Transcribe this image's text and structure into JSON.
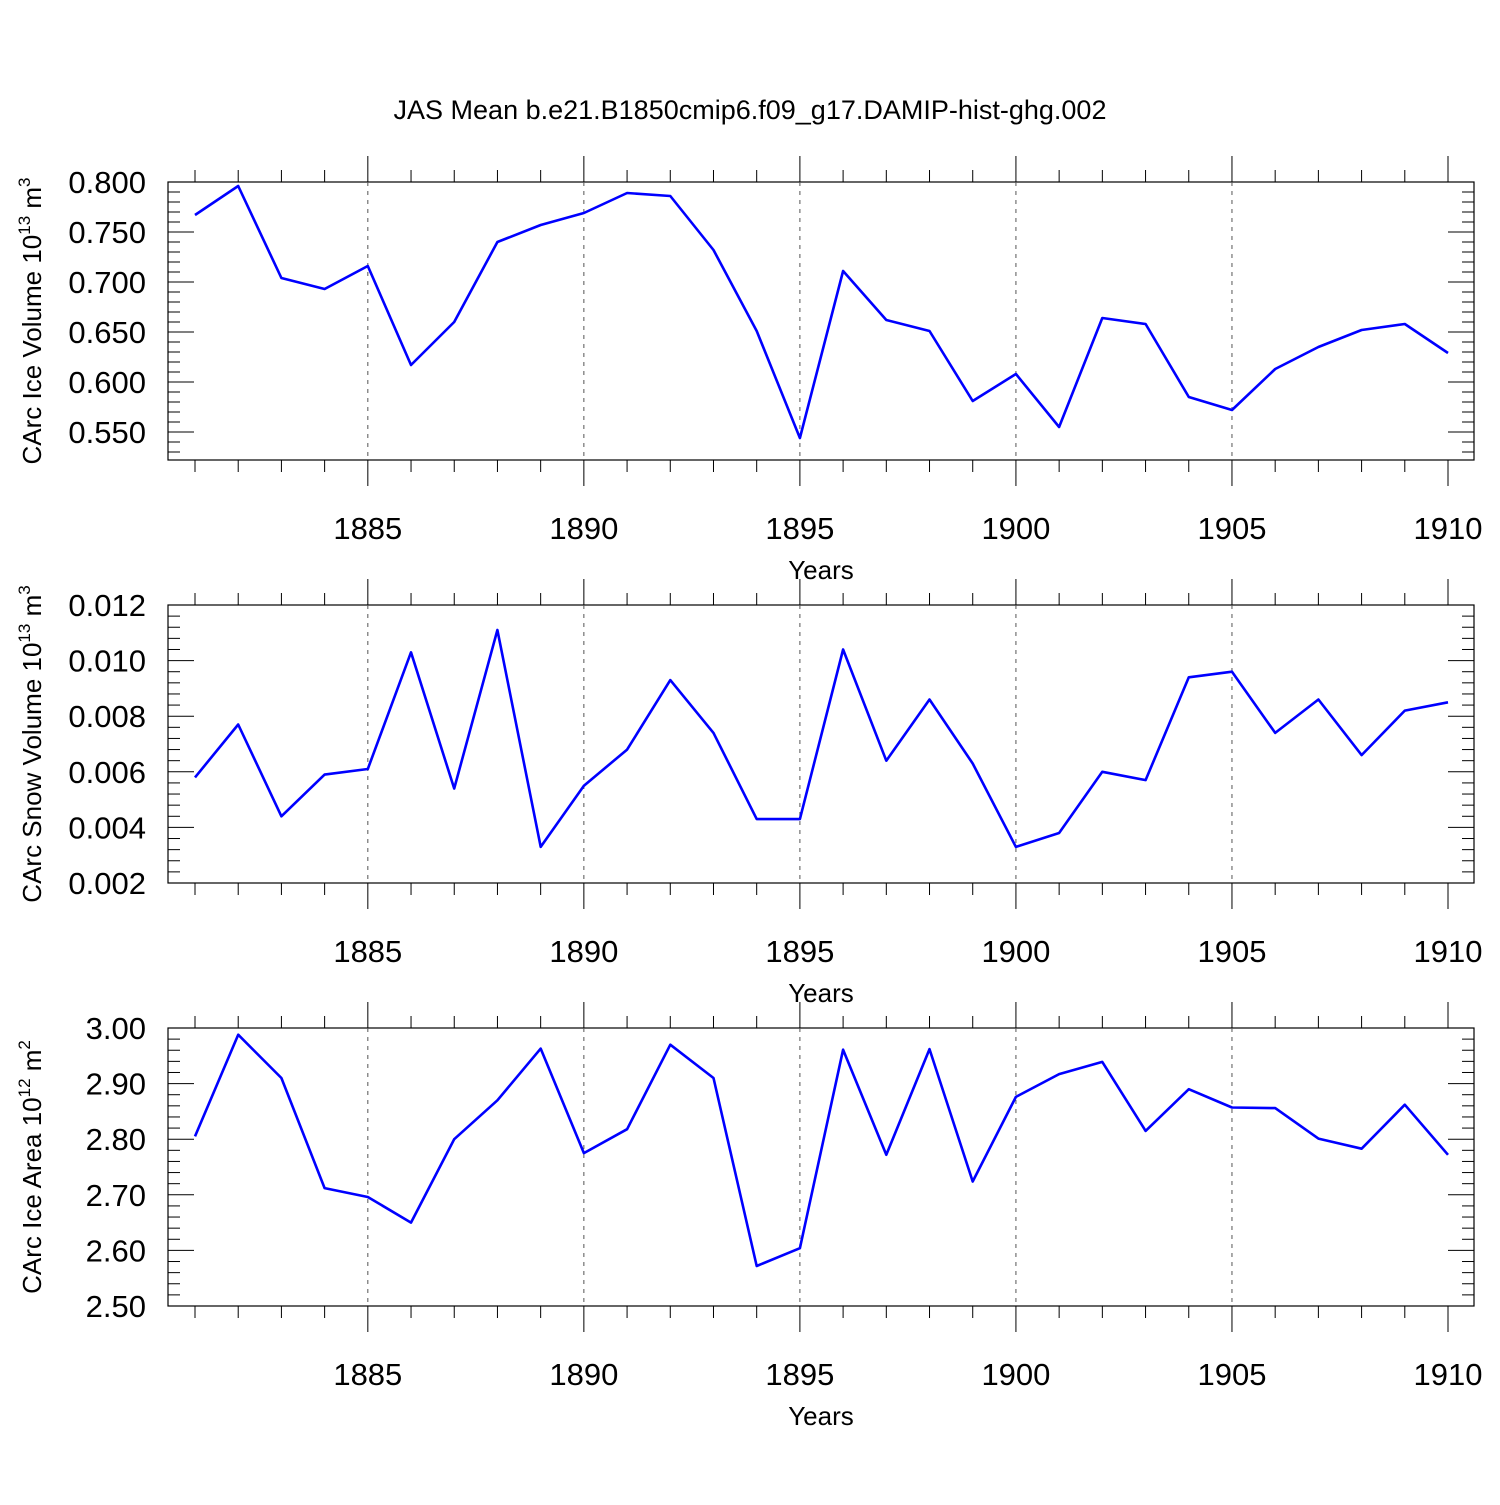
{
  "title": "JAS Mean b.e21.B1850cmip6.f09_g17.DAMIP-hist-ghg.002",
  "colors": {
    "line": "#0000ff",
    "axis": "#000000",
    "grid": "#555555",
    "background": "#ffffff"
  },
  "chart_data": [
    {
      "type": "line",
      "ylabel_main": "CArc Ice Volume 10",
      "ylabel_exp": "13",
      "ylabel_unit": "m",
      "ylabel_unit_exp": "3",
      "xlabel": "Years",
      "xlim": [
        1881,
        1910
      ],
      "ylim": [
        0.522,
        0.8
      ],
      "xticks": [
        1885,
        1890,
        1895,
        1900,
        1905,
        1910
      ],
      "xtick_labels": [
        "1885",
        "1890",
        "1895",
        "1900",
        "1905",
        "1910"
      ],
      "yticks": [
        0.55,
        0.6,
        0.65,
        0.7,
        0.75,
        0.8
      ],
      "ytick_labels": [
        "0.550",
        "0.600",
        "0.650",
        "0.700",
        "0.750",
        "0.800"
      ],
      "grid_x": [
        1885,
        1890,
        1895,
        1900,
        1905
      ],
      "series": [
        {
          "name": "CArc Ice Volume",
          "x": [
            1881,
            1882,
            1883,
            1884,
            1885,
            1886,
            1887,
            1888,
            1889,
            1890,
            1891,
            1892,
            1893,
            1894,
            1895,
            1896,
            1897,
            1898,
            1899,
            1900,
            1901,
            1902,
            1903,
            1904,
            1905,
            1906,
            1907,
            1908,
            1909,
            1910
          ],
          "values": [
            0.767,
            0.796,
            0.704,
            0.693,
            0.716,
            0.617,
            0.66,
            0.74,
            0.757,
            0.769,
            0.789,
            0.786,
            0.732,
            0.651,
            0.544,
            0.711,
            0.662,
            0.651,
            0.581,
            0.608,
            0.555,
            0.664,
            0.658,
            0.585,
            0.572,
            0.613,
            0.635,
            0.652,
            0.658,
            0.629
          ]
        }
      ]
    },
    {
      "type": "line",
      "ylabel_main": "CArc Snow Volume 10",
      "ylabel_exp": "13",
      "ylabel_unit": "m",
      "ylabel_unit_exp": "3",
      "xlabel": "Years",
      "xlim": [
        1881,
        1910
      ],
      "ylim": [
        0.002,
        0.012
      ],
      "xticks": [
        1885,
        1890,
        1895,
        1900,
        1905,
        1910
      ],
      "xtick_labels": [
        "1885",
        "1890",
        "1895",
        "1900",
        "1905",
        "1910"
      ],
      "yticks": [
        0.002,
        0.004,
        0.006,
        0.008,
        0.01,
        0.012
      ],
      "ytick_labels": [
        "0.002",
        "0.004",
        "0.006",
        "0.008",
        "0.010",
        "0.012"
      ],
      "grid_x": [
        1885,
        1890,
        1895,
        1900,
        1905
      ],
      "series": [
        {
          "name": "CArc Snow Volume",
          "x": [
            1881,
            1882,
            1883,
            1884,
            1885,
            1886,
            1887,
            1888,
            1889,
            1890,
            1891,
            1892,
            1893,
            1894,
            1895,
            1896,
            1897,
            1898,
            1899,
            1900,
            1901,
            1902,
            1903,
            1904,
            1905,
            1906,
            1907,
            1908,
            1909,
            1910
          ],
          "values": [
            0.0058,
            0.0077,
            0.0044,
            0.0059,
            0.0061,
            0.0103,
            0.0054,
            0.0111,
            0.0033,
            0.0055,
            0.0068,
            0.0093,
            0.0074,
            0.0043,
            0.0043,
            0.0104,
            0.0064,
            0.0086,
            0.0063,
            0.0033,
            0.0038,
            0.006,
            0.0057,
            0.0094,
            0.0096,
            0.0074,
            0.0086,
            0.0066,
            0.0082,
            0.0085
          ]
        }
      ]
    },
    {
      "type": "line",
      "ylabel_main": "CArc Ice Area 10",
      "ylabel_exp": "12",
      "ylabel_unit": "m",
      "ylabel_unit_exp": "2",
      "xlabel": "Years",
      "xlim": [
        1881,
        1910
      ],
      "ylim": [
        2.5,
        3.0
      ],
      "xticks": [
        1885,
        1890,
        1895,
        1900,
        1905,
        1910
      ],
      "xtick_labels": [
        "1885",
        "1890",
        "1895",
        "1900",
        "1905",
        "1910"
      ],
      "yticks": [
        2.5,
        2.6,
        2.7,
        2.8,
        2.9,
        3.0
      ],
      "ytick_labels": [
        "2.50",
        "2.60",
        "2.70",
        "2.80",
        "2.90",
        "3.00"
      ],
      "grid_x": [
        1885,
        1890,
        1895,
        1900,
        1905
      ],
      "series": [
        {
          "name": "CArc Ice Area",
          "x": [
            1881,
            1882,
            1883,
            1884,
            1885,
            1886,
            1887,
            1888,
            1889,
            1890,
            1891,
            1892,
            1893,
            1894,
            1895,
            1896,
            1897,
            1898,
            1899,
            1900,
            1901,
            1902,
            1903,
            1904,
            1905,
            1906,
            1907,
            1908,
            1909,
            1910
          ],
          "values": [
            2.805,
            2.988,
            2.91,
            2.712,
            2.696,
            2.65,
            2.8,
            2.87,
            2.963,
            2.775,
            2.818,
            2.97,
            2.91,
            2.572,
            2.604,
            2.961,
            2.772,
            2.962,
            2.724,
            2.876,
            2.917,
            2.939,
            2.815,
            2.89,
            2.857,
            2.856,
            2.801,
            2.783,
            2.862,
            2.772
          ]
        }
      ]
    }
  ]
}
